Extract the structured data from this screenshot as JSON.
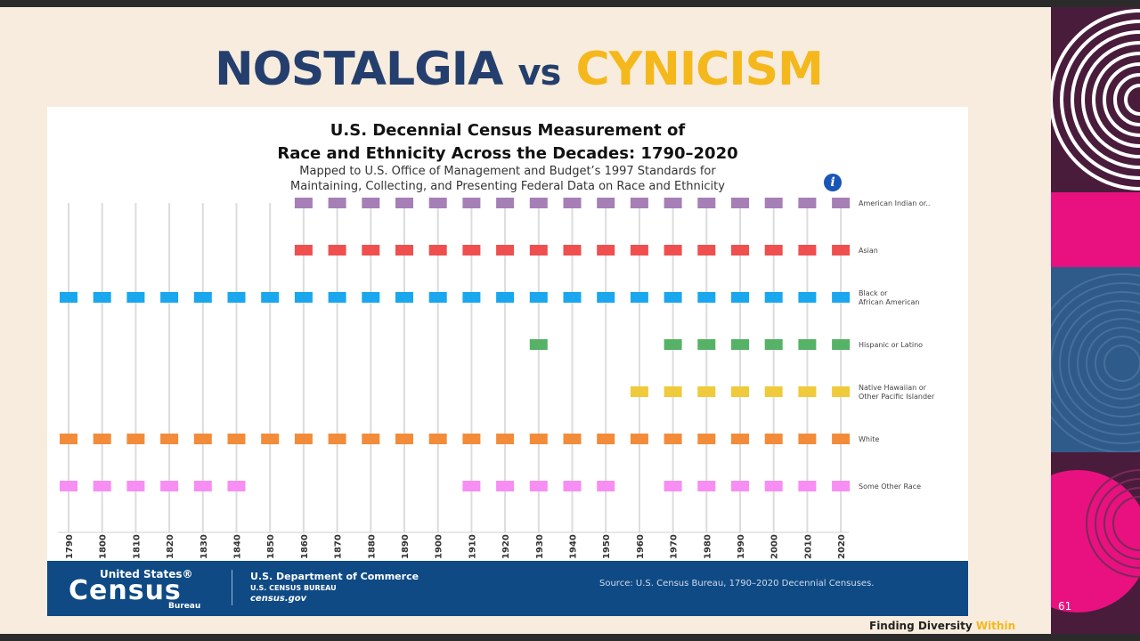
{
  "slide": {
    "title_part1": "NOSTALGIA",
    "title_part2": "vs",
    "title_part3": "CYNICISM",
    "page_number": "61",
    "tagline_main": "Finding Diversity",
    "tagline_highlight": "Within",
    "colors": {
      "navy": "#243f6e",
      "gold": "#f5b81c",
      "background": "#f7ecdd"
    }
  },
  "chart_data": {
    "type": "scatter",
    "title_line1": "U.S. Decennial Census Measurement of",
    "title_line2": "Race and Ethnicity Across the Decades: 1790–2020",
    "subtitle_line1": "Mapped to U.S. Office of Management and Budget’s 1997 Standards for",
    "subtitle_line2": "Maintaining, Collecting, and Presenting Federal Data on Race and Ethnicity",
    "info_icon": "i",
    "x": [
      "1790",
      "1800",
      "1810",
      "1820",
      "1830",
      "1840",
      "1850",
      "1860",
      "1870",
      "1880",
      "1890",
      "1900",
      "1910",
      "1920",
      "1930",
      "1940",
      "1950",
      "1960",
      "1970",
      "1980",
      "1990",
      "2000",
      "2010",
      "2020"
    ],
    "series": [
      {
        "name": "American Indian or..",
        "name_lines": [
          "American Indian or.."
        ],
        "color": "#a57fb6",
        "years": [
          "1860",
          "1870",
          "1880",
          "1890",
          "1900",
          "1910",
          "1920",
          "1930",
          "1940",
          "1950",
          "1960",
          "1970",
          "1980",
          "1990",
          "2000",
          "2010",
          "2020"
        ]
      },
      {
        "name": "Asian",
        "name_lines": [
          "Asian"
        ],
        "color": "#ef4f4f",
        "years": [
          "1860",
          "1870",
          "1880",
          "1890",
          "1900",
          "1910",
          "1920",
          "1930",
          "1940",
          "1950",
          "1960",
          "1970",
          "1980",
          "1990",
          "2000",
          "2010",
          "2020"
        ]
      },
      {
        "name": "Black or African American",
        "name_lines": [
          "Black or",
          "African American"
        ],
        "color": "#1aa7ee",
        "years": [
          "1790",
          "1800",
          "1810",
          "1820",
          "1830",
          "1840",
          "1850",
          "1860",
          "1870",
          "1880",
          "1890",
          "1900",
          "1910",
          "1920",
          "1930",
          "1940",
          "1950",
          "1960",
          "1970",
          "1980",
          "1990",
          "2000",
          "2010",
          "2020"
        ]
      },
      {
        "name": "Hispanic or Latino",
        "name_lines": [
          "Hispanic or Latino"
        ],
        "color": "#56b266",
        "years": [
          "1930",
          "1970",
          "1980",
          "1990",
          "2000",
          "2010",
          "2020"
        ]
      },
      {
        "name": "Native Hawaiian or Other Pacific Islander",
        "name_lines": [
          "Native Hawaiian or",
          "Other Pacific Islander"
        ],
        "color": "#efcb3b",
        "years": [
          "1960",
          "1970",
          "1980",
          "1990",
          "2000",
          "2010",
          "2020"
        ]
      },
      {
        "name": "White",
        "name_lines": [
          "White"
        ],
        "color": "#f28c3a",
        "years": [
          "1790",
          "1800",
          "1810",
          "1820",
          "1830",
          "1840",
          "1850",
          "1860",
          "1870",
          "1880",
          "1890",
          "1900",
          "1910",
          "1920",
          "1930",
          "1940",
          "1950",
          "1960",
          "1970",
          "1980",
          "1990",
          "2000",
          "2010",
          "2020"
        ]
      },
      {
        "name": "Some Other Race",
        "name_lines": [
          "Some Other Race"
        ],
        "color": "#f78ef3",
        "years": [
          "1790",
          "1800",
          "1810",
          "1820",
          "1830",
          "1840",
          "1910",
          "1920",
          "1930",
          "1940",
          "1950",
          "1970",
          "1980",
          "1990",
          "2000",
          "2010",
          "2020"
        ]
      }
    ],
    "grid": "vertical"
  },
  "footer": {
    "logo_line1": "United States®",
    "logo_line2": "Census",
    "logo_line3": "Bureau",
    "dept_line1": "U.S. Department of Commerce",
    "dept_line2": "U.S. CENSUS BUREAU",
    "dept_line3": "census.gov",
    "source": "Source: U.S. Census Bureau, 1790–2020 Decennial Censuses.",
    "band_color": "#0f4a85"
  }
}
